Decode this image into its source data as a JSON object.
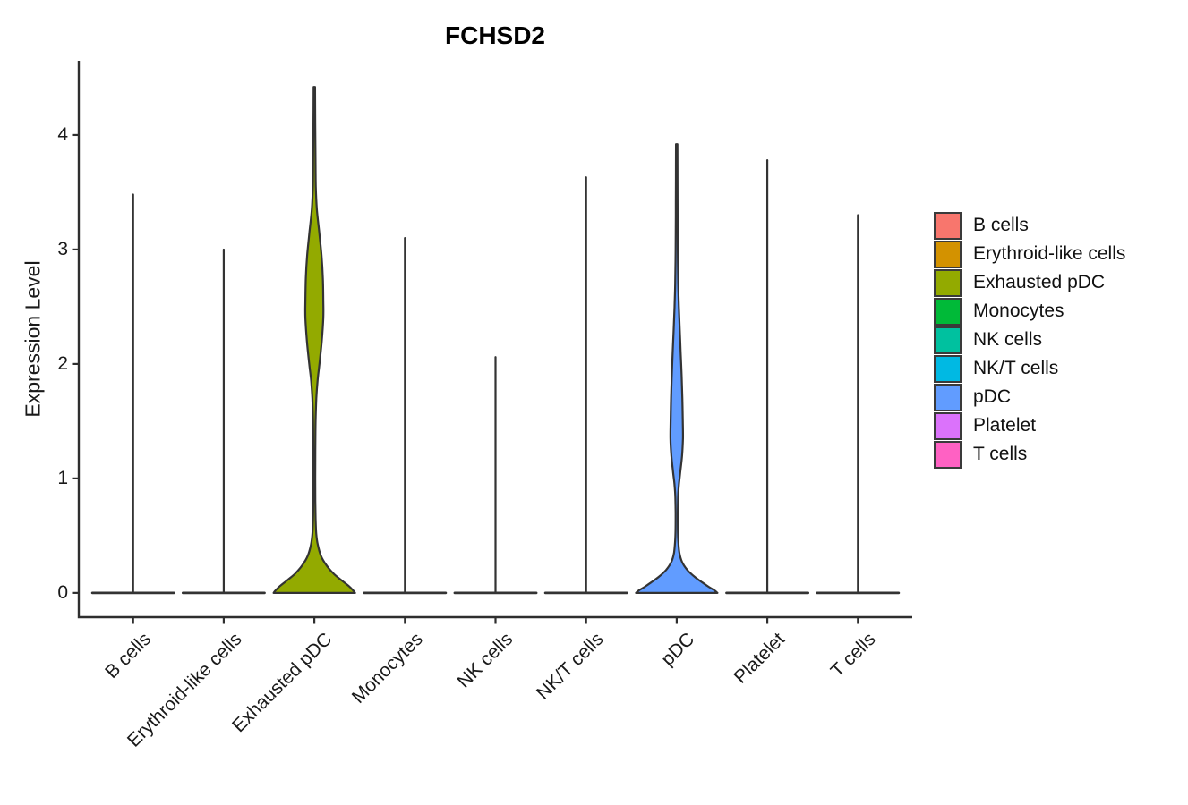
{
  "chart_data": {
    "type": "violin",
    "title": "FCHSD2",
    "ylabel": "Expression Level",
    "xlabel": "",
    "ylim": [
      -0.212,
      4.648
    ],
    "y_ticks": [
      "0",
      "1",
      "2",
      "3",
      "4"
    ],
    "y_tick_values": [
      0,
      1,
      2,
      3,
      4
    ],
    "grid": "off",
    "legend_position": "right",
    "x_tick_angle": -45,
    "background_color": "#ffffff",
    "axis_color": "#2e2e2e",
    "violin_outline_color": "#333333",
    "categories": [
      "B cells",
      "Erythroid-like cells",
      "Exhausted pDC",
      "Monocytes",
      "NK cells",
      "NK/T cells",
      "pDC",
      "Platelet",
      "T cells"
    ],
    "base_halfwidth": 0.45,
    "series": [
      {
        "name": "B cells",
        "color": "#F8766D",
        "max_expression": 3.48,
        "profile": null
      },
      {
        "name": "Erythroid-like cells",
        "color": "#D39200",
        "max_expression": 3.0,
        "profile": null
      },
      {
        "name": "Exhausted pDC",
        "color": "#93AA00",
        "max_expression": 4.42,
        "profile": [
          [
            4.42,
            0.008
          ],
          [
            4.1,
            0.01
          ],
          [
            3.8,
            0.013
          ],
          [
            3.55,
            0.016
          ],
          [
            3.35,
            0.028
          ],
          [
            3.15,
            0.054
          ],
          [
            2.95,
            0.079
          ],
          [
            2.75,
            0.094
          ],
          [
            2.55,
            0.099
          ],
          [
            2.4,
            0.099
          ],
          [
            2.2,
            0.082
          ],
          [
            2.0,
            0.056
          ],
          [
            1.85,
            0.035
          ],
          [
            1.7,
            0.022
          ],
          [
            1.5,
            0.014
          ],
          [
            1.25,
            0.011
          ],
          [
            1.0,
            0.01
          ],
          [
            0.8,
            0.011
          ],
          [
            0.65,
            0.014
          ],
          [
            0.52,
            0.021
          ],
          [
            0.42,
            0.038
          ],
          [
            0.32,
            0.075
          ],
          [
            0.24,
            0.135
          ],
          [
            0.17,
            0.21
          ],
          [
            0.11,
            0.3
          ],
          [
            0.06,
            0.38
          ],
          [
            0.02,
            0.43
          ],
          [
            0.0,
            0.45
          ]
        ]
      },
      {
        "name": "Monocytes",
        "color": "#00BA38",
        "max_expression": 3.1,
        "profile": null
      },
      {
        "name": "NK cells",
        "color": "#00C19F",
        "max_expression": 2.06,
        "profile": null
      },
      {
        "name": "NK/T cells",
        "color": "#00B9E3",
        "max_expression": 3.63,
        "profile": null
      },
      {
        "name": "pDC",
        "color": "#619CFF",
        "max_expression": 3.92,
        "profile": [
          [
            3.92,
            0.008
          ],
          [
            3.6,
            0.009
          ],
          [
            3.3,
            0.01
          ],
          [
            3.0,
            0.012
          ],
          [
            2.7,
            0.017
          ],
          [
            2.5,
            0.024
          ],
          [
            2.3,
            0.034
          ],
          [
            2.1,
            0.044
          ],
          [
            1.9,
            0.054
          ],
          [
            1.7,
            0.062
          ],
          [
            1.5,
            0.067
          ],
          [
            1.35,
            0.069
          ],
          [
            1.2,
            0.059
          ],
          [
            1.05,
            0.039
          ],
          [
            0.95,
            0.025
          ],
          [
            0.85,
            0.016
          ],
          [
            0.7,
            0.012
          ],
          [
            0.55,
            0.013
          ],
          [
            0.45,
            0.018
          ],
          [
            0.35,
            0.03
          ],
          [
            0.27,
            0.059
          ],
          [
            0.2,
            0.118
          ],
          [
            0.14,
            0.198
          ],
          [
            0.09,
            0.285
          ],
          [
            0.05,
            0.36
          ],
          [
            0.02,
            0.42
          ],
          [
            0.0,
            0.45
          ]
        ]
      },
      {
        "name": "Platelet",
        "color": "#DB72FB",
        "max_expression": 3.78,
        "profile": null
      },
      {
        "name": "T cells",
        "color": "#FF61C3",
        "max_expression": 3.3,
        "profile": null
      }
    ]
  }
}
